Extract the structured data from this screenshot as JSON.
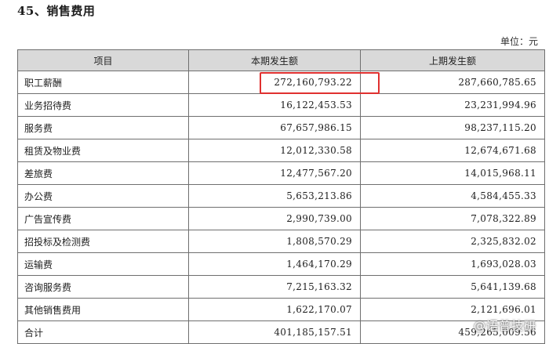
{
  "heading": "45、销售费用",
  "unit": "单位：元",
  "table": {
    "headers": [
      "项目",
      "本期发生额",
      "上期发生额"
    ],
    "rows": [
      {
        "item": "职工薪酬",
        "current": "272,160,793.22",
        "previous": "287,660,785.65"
      },
      {
        "item": "业务招待费",
        "current": "16,122,453.53",
        "previous": "23,231,994.96"
      },
      {
        "item": "服务费",
        "current": "67,657,986.15",
        "previous": "98,237,115.20"
      },
      {
        "item": "租赁及物业费",
        "current": "12,012,330.58",
        "previous": "12,674,671.68"
      },
      {
        "item": "差旅费",
        "current": "12,477,567.20",
        "previous": "14,015,968.11"
      },
      {
        "item": "办公费",
        "current": "5,653,213.86",
        "previous": "4,584,455.33"
      },
      {
        "item": "广告宣传费",
        "current": "2,990,739.00",
        "previous": "7,078,322.89"
      },
      {
        "item": "招投标及检测费",
        "current": "1,808,570.29",
        "previous": "2,325,832.02"
      },
      {
        "item": "运输费",
        "current": "1,464,170.29",
        "previous": "1,693,028.03"
      },
      {
        "item": "咨询服务费",
        "current": "7,215,163.32",
        "previous": "5,641,139.68"
      },
      {
        "item": "其他销售费用",
        "current": "1,622,170.07",
        "previous": "2,121,696.01"
      },
      {
        "item": "合计",
        "current": "401,185,157.51",
        "previous": "459,265,009.56"
      }
    ]
  },
  "watermark": "@语普技研",
  "colors": {
    "header_bg": "#d9d9d9",
    "highlight": "#e0302f"
  }
}
